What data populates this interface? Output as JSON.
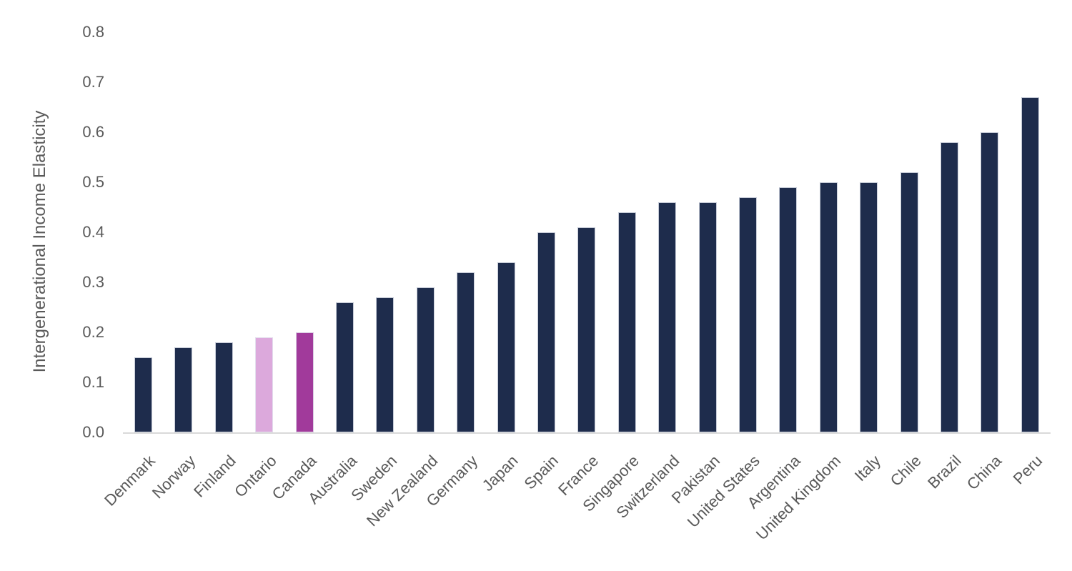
{
  "chart_data": {
    "type": "bar",
    "title": "",
    "xlabel": "",
    "ylabel": "Intergenerational Income Elasticity",
    "ylim": [
      0.0,
      0.8
    ],
    "yticks": [
      "0.0",
      "0.1",
      "0.2",
      "0.3",
      "0.4",
      "0.5",
      "0.6",
      "0.7",
      "0.8"
    ],
    "grid": false,
    "legend_position": "none",
    "categories": [
      "Denmark",
      "Norway",
      "Finland",
      "Ontario",
      "Canada",
      "Australia",
      "Sweden",
      "New Zealand",
      "Germany",
      "Japan",
      "Spain",
      "France",
      "Singapore",
      "Switzerland",
      "Pakistan",
      "United States",
      "Argentina",
      "United Kingdom",
      "Italy",
      "Chile",
      "Brazil",
      "China",
      "Peru"
    ],
    "values": [
      0.15,
      0.17,
      0.18,
      0.19,
      0.2,
      0.26,
      0.27,
      0.29,
      0.32,
      0.34,
      0.4,
      0.41,
      0.44,
      0.46,
      0.46,
      0.47,
      0.49,
      0.5,
      0.5,
      0.52,
      0.58,
      0.6,
      0.67
    ],
    "highlighted_bars": [
      {
        "category": "Ontario",
        "color": "#DCA9DC"
      },
      {
        "category": "Canada",
        "color": "#A13A9B"
      }
    ],
    "colors": {
      "bar_default": "#1E2C4C",
      "axis_text": "#595959",
      "axis_line": "#D9D9D9",
      "background": "#FFFFFF"
    }
  }
}
